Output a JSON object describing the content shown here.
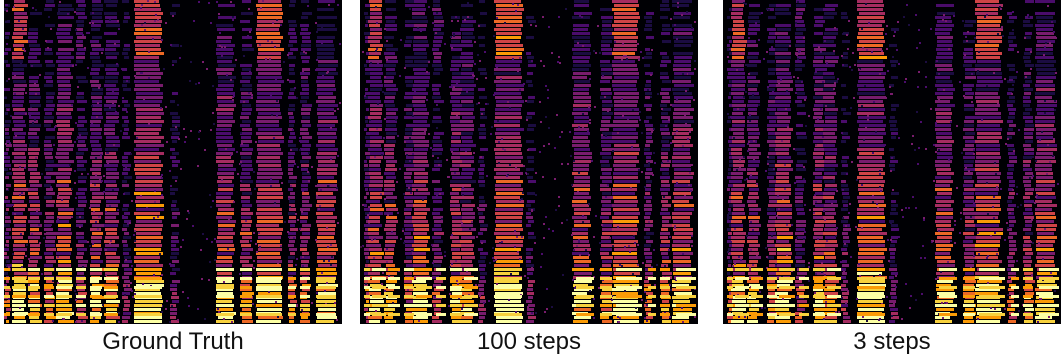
{
  "panels": [
    {
      "label": "Ground Truth",
      "id": "ground-truth"
    },
    {
      "label": "100 steps",
      "id": "100-steps"
    },
    {
      "label": "3 steps",
      "id": "3-steps"
    }
  ],
  "colormap": [
    "#000004",
    "#1b0c41",
    "#4a0c6b",
    "#781c6d",
    "#a52c60",
    "#cf4446",
    "#ed6925",
    "#fb9b06",
    "#f7d13d",
    "#fcffa4"
  ]
}
